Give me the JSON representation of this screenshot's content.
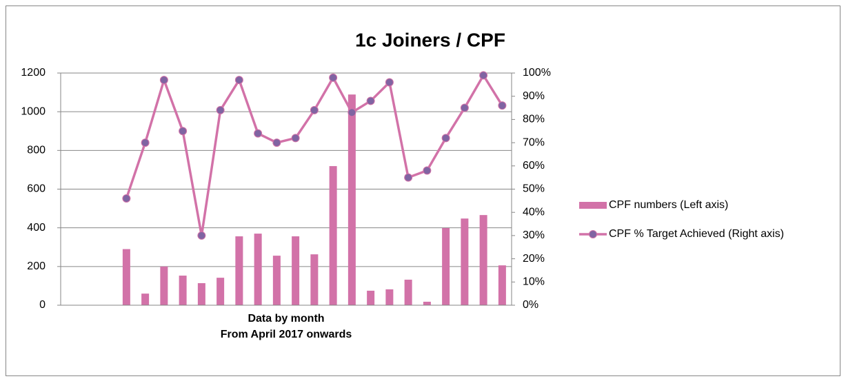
{
  "chart_data": {
    "type": "bar_line",
    "title": "1c Joiners / CPF",
    "xlabel": [
      "Data by month",
      "From April 2017 onwards"
    ],
    "categories": [
      null,
      null,
      null,
      null,
      null,
      null,
      null,
      null,
      null,
      null,
      null,
      null,
      null,
      null,
      null,
      null,
      null,
      null,
      null,
      null,
      null,
      null,
      null,
      null
    ],
    "series": [
      {
        "name": "CPF numbers (Left axis)",
        "color": "#d272a8",
        "type": "bar",
        "values": [
          null,
          null,
          null,
          290,
          60,
          200,
          153,
          114,
          142,
          356,
          370,
          256,
          356,
          263,
          719,
          1089,
          75,
          82,
          132,
          18,
          399,
          448,
          466,
          206
        ]
      },
      {
        "name": "CPF % Target Achieved (Right axis)",
        "color": "#d272a8",
        "marker_color": "#8064a2",
        "type": "line",
        "axis": "y2",
        "values": [
          null,
          null,
          null,
          46,
          70,
          97,
          75,
          30,
          84,
          97,
          74,
          70,
          72,
          84,
          98,
          83,
          88,
          96,
          55,
          58,
          72,
          85,
          99,
          86
        ]
      }
    ],
    "ylim": [
      0,
      1200
    ],
    "yticks": [
      0,
      200,
      400,
      600,
      800,
      1000,
      1200
    ],
    "y2lim": [
      0,
      100
    ],
    "y2ticks": [
      {
        "value": 0,
        "label": "0%"
      },
      {
        "value": 10,
        "label": "10%"
      },
      {
        "value": 20,
        "label": "20%"
      },
      {
        "value": 30,
        "label": "30%"
      },
      {
        "value": 40,
        "label": "40%"
      },
      {
        "value": 50,
        "label": "50%"
      },
      {
        "value": 60,
        "label": "60%"
      },
      {
        "value": 70,
        "label": "70%"
      },
      {
        "value": 80,
        "label": "80%"
      },
      {
        "value": 90,
        "label": "90%"
      },
      {
        "value": 100,
        "label": "100%"
      }
    ],
    "grid": true,
    "legend": "right"
  }
}
